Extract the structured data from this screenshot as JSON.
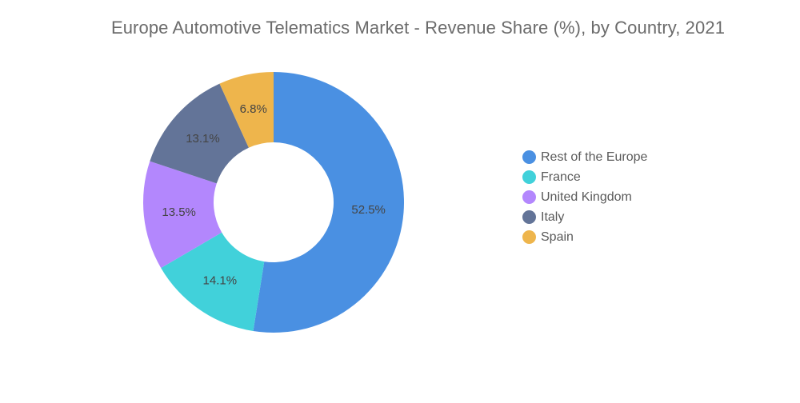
{
  "chart_data": {
    "type": "pie",
    "variant": "donut",
    "title": "Europe Automotive Telematics Market - Revenue Share (%), by Country, 2021",
    "legend_position": "right",
    "slices": [
      {
        "name": "Rest of the Europe",
        "value": 52.5,
        "label": "52.5%",
        "color": "#4a90e2"
      },
      {
        "name": "France",
        "value": 14.1,
        "label": "14.1%",
        "color": "#41d1da"
      },
      {
        "name": "United Kingdom",
        "value": 13.5,
        "label": "13.5%",
        "color": "#b387fd"
      },
      {
        "name": "Italy",
        "value": 13.1,
        "label": "13.1%",
        "color": "#637498"
      },
      {
        "name": "Spain",
        "value": 6.8,
        "label": "6.8%",
        "color": "#eeb54c"
      }
    ]
  }
}
